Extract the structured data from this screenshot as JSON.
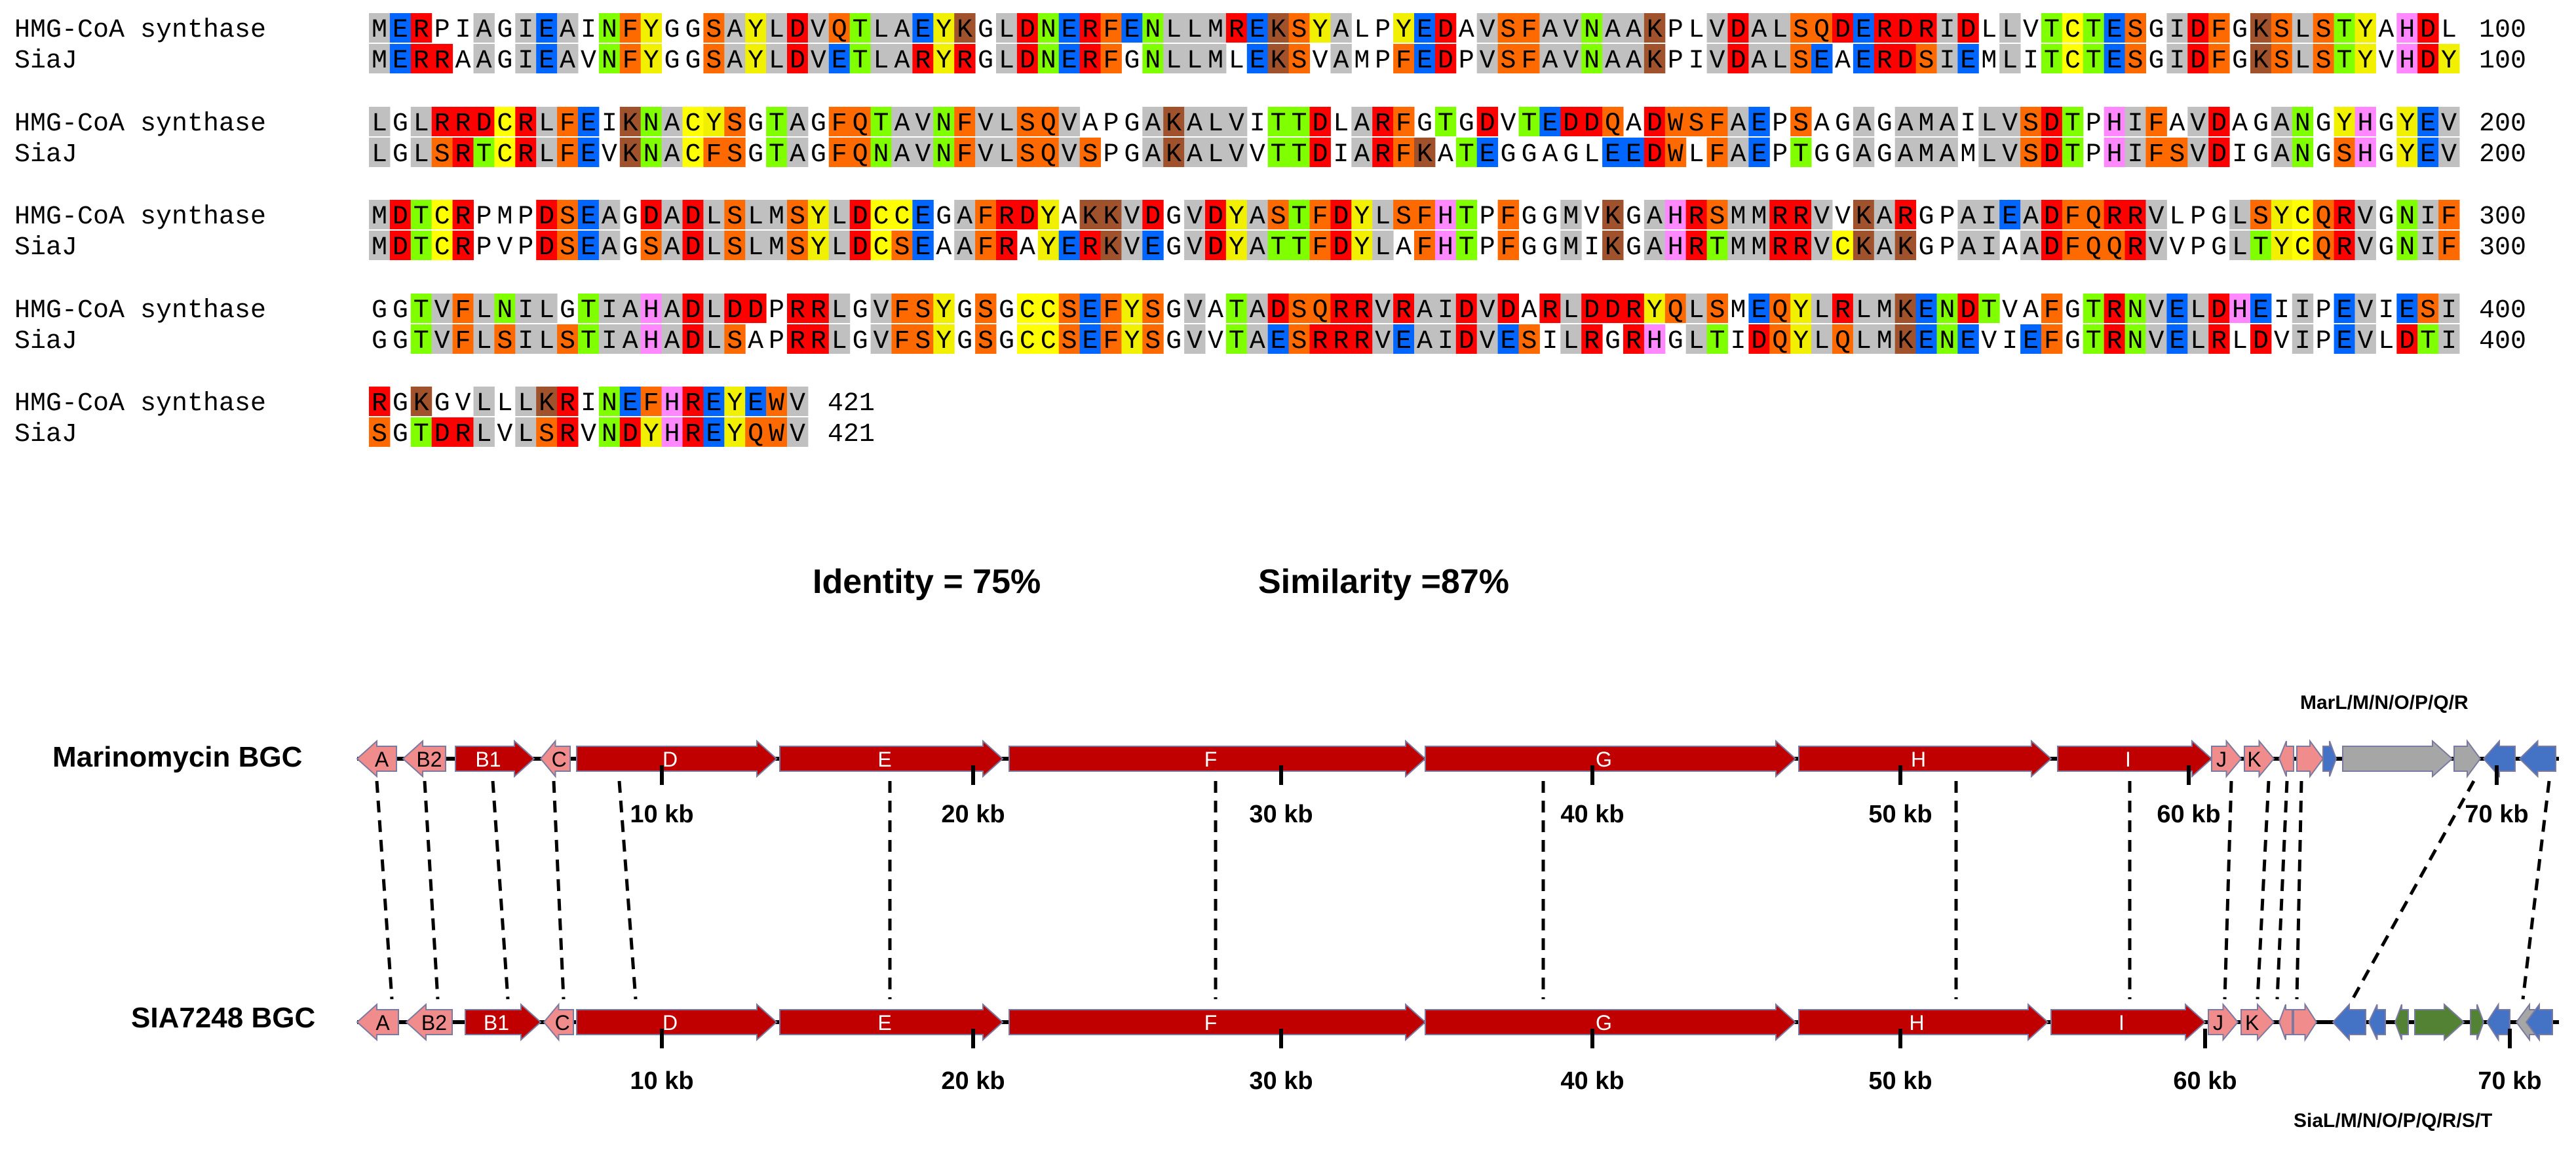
{
  "alignment": {
    "seq1_name": "HMG-CoA synthase",
    "seq2_name": "SiaJ",
    "blocks": [
      {
        "seq1": "MERPIAGIEAINFYGGSAYLDVQTLAEYKGLDNERFENLLMREKSYALPYEDAVSFAVNAAKPLVDALSQDERDRIDLLVTCTESGIDFGKSLSTYAHDL",
        "seq2": "MERRAAGIEAVNFYGGSAYLDVETLARYRGLDNERFGNLLMLEKSVAMPFEDPVSFAVNAAKPIVDALSEAERDSIEMLITCTESGIDFGKSLSTYVHDY",
        "end": "100"
      },
      {
        "seq1": "LGLRRDCRLFEIKNACYSGTAGFQTAVNFVLSQVAPGAKALVITTDLARFGTGDVTEDDQADWSFAEPSAGAGAMAILVSDTPHIFAVDAGANGYHGYEV",
        "seq2": "LGLSRTCRLFEVKNACFSGTAGFQNAVNFVLSQVSPGAKALVVTTDIARFKATEGGAGLEEDWLFAEPTGGAGAMAMLVSDTPHIFSVDIGANGSHGYEV",
        "end": "200"
      },
      {
        "seq1": "MDTCRPMPDSEAGDADLSLMSYLDCCEGAFRDYAKKVDGVDYASTFDYLSFHTPFGGMVKGAHRSMMRRVVKARGPAIEADFQRRVLPGLSYCQRVGNIF",
        "seq2": "MDTCRPVPDSEAGSADLSLMSYLDCSEAAFRAYERKVEGVDYATTFDYLAFHTPFGGMIKGAHRTMMRRVCKAKGPAIAADFQQRVVPGLTYCQRVGNIF",
        "end": "300"
      },
      {
        "seq1": "GGTVFLNILGTIAHADLDDPRRLGVFSYGSGCCSEFYSGVATADSQRRVRAIDVDARLDDRYQLSMEQYLRLMKENDTVAFGTRNVELDHEIIPEVIESI",
        "seq2": "GGTVFLSILSTIAHADLSAPRRLGVFSYGSGCCSEFYSGVVTAESRRRVEAIDVESILRGRHGLTIDQYLQLMKENEVIEFGTRNVELRLDVIPEVLDTI",
        "end": "400"
      },
      {
        "seq1": "RGKGVLLLKRINEFHREYEWV",
        "seq2": "SGTDRLVLSRVNDYHREYQWV",
        "end": "421"
      }
    ]
  },
  "stats": {
    "identity": "Identity = 75%",
    "similarity": "Similarity =87%"
  },
  "clusters": {
    "top_label": "Marinomycin BGC",
    "bottom_label": "SIA7248 BGC",
    "top_extra": "MarL/M/N/O/P/Q/R",
    "bottom_extra": "SiaL/M/N/O/P/Q/R/S/T",
    "top_ticks": [
      "10 kb",
      "20 kb",
      "30 kb",
      "40 kb",
      "50 kb",
      "60 kb",
      "70 kb"
    ],
    "bottom_ticks": [
      "10 kb",
      "20 kb",
      "30 kb",
      "40 kb",
      "50 kb",
      "60 kb",
      "70 kb"
    ],
    "genes": [
      "A",
      "B2",
      "B1",
      "C",
      "D",
      "E",
      "F",
      "G",
      "H",
      "I",
      "J",
      "K"
    ],
    "colors": {
      "core": "#c00000",
      "small": "#f08c8c",
      "blue": "#4472c4",
      "gray": "#a6a6a6",
      "green": "#548235"
    }
  },
  "residue_colors": {
    "A": "#c0c0c0",
    "V": "#c0c0c0",
    "L": "#c0c0c0",
    "I": "#c0c0c0",
    "M": "#c0c0c0",
    "F": "#ff6a00",
    "W": "#ff6a00",
    "Y": "#f0f000",
    "D": "#ff0000",
    "E": "#0066ff",
    "K": "#a0522d",
    "R": "#ff0000",
    "H": "#ff88ff",
    "S": "#ff6a00",
    "T": "#80ff00",
    "N": "#80ff00",
    "Q": "#ff6a00",
    "G": "#ffffff",
    "P": "#ffffff",
    "C": "#ffff00"
  }
}
